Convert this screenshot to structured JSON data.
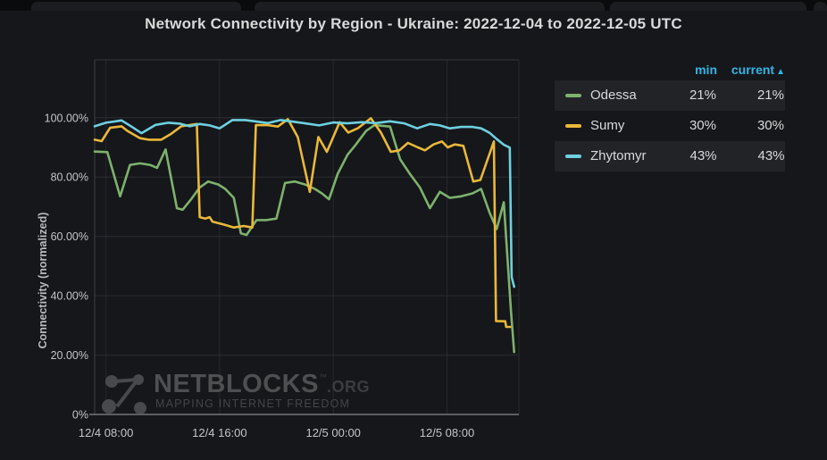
{
  "title": "Network Connectivity by Region - Ukraine: 2022-12-04 to 2022-12-05 UTC",
  "watermark": {
    "brand": "NETBLOCKS",
    "tm": "™",
    "domain": ".ORG",
    "tagline": "MAPPING INTERNET FREEDOM"
  },
  "chart_data": {
    "type": "line",
    "title": "Network Connectivity by Region - Ukraine: 2022-12-04 to 2022-12-05 UTC",
    "xlabel": "",
    "ylabel": "Connectivity (normalized)",
    "x_unit": "hours since 2022-12-04 08:00 UTC",
    "xlim": [
      -0.79,
      29.06
    ],
    "ylim": [
      0,
      119.5
    ],
    "grid": true,
    "xticks": [
      {
        "t": 0,
        "label": "12/4 08:00"
      },
      {
        "t": 8,
        "label": "12/4 16:00"
      },
      {
        "t": 16,
        "label": "12/5 00:00"
      },
      {
        "t": 24,
        "label": "12/5 08:00"
      }
    ],
    "yticks": [
      {
        "v": 0,
        "label": "0%"
      },
      {
        "v": 20,
        "label": "20.00%"
      },
      {
        "v": 40,
        "label": "40.00%"
      },
      {
        "v": 60,
        "label": "60.00%"
      },
      {
        "v": 80,
        "label": "80.00%"
      },
      {
        "v": 100,
        "label": "100.00%"
      }
    ],
    "legend": {
      "position": "right-top",
      "columns": [
        "min",
        "current"
      ],
      "sort_column": "current",
      "sort_icon": "▲",
      "header_color": "#33B5E5"
    },
    "series": [
      {
        "name": "Odessa",
        "color": "#7EB26D",
        "min": "21%",
        "current": "21%",
        "points": [
          [
            -0.79,
            88.6
          ],
          [
            0.1,
            88.4
          ],
          [
            1.0,
            73.5
          ],
          [
            1.7,
            84.1
          ],
          [
            2.4,
            84.6
          ],
          [
            3.1,
            84.1
          ],
          [
            3.6,
            83.1
          ],
          [
            4.2,
            89.3
          ],
          [
            5.0,
            69.5
          ],
          [
            5.4,
            69.0
          ],
          [
            6.0,
            72.5
          ],
          [
            6.6,
            76.5
          ],
          [
            7.2,
            78.5
          ],
          [
            7.9,
            77.5
          ],
          [
            8.4,
            76.0
          ],
          [
            9.0,
            73.0
          ],
          [
            9.5,
            61.0
          ],
          [
            9.9,
            60.5
          ],
          [
            10.6,
            65.5
          ],
          [
            11.3,
            65.5
          ],
          [
            12.0,
            66.0
          ],
          [
            12.6,
            78.0
          ],
          [
            13.3,
            78.5
          ],
          [
            14.0,
            77.5
          ],
          [
            14.7,
            76.0
          ],
          [
            15.2,
            74.5
          ],
          [
            15.7,
            72.5
          ],
          [
            16.3,
            81.0
          ],
          [
            17.0,
            87.5
          ],
          [
            17.6,
            91.0
          ],
          [
            18.3,
            95.5
          ],
          [
            18.9,
            97.5
          ],
          [
            20.0,
            97.0
          ],
          [
            20.7,
            86.0
          ],
          [
            21.4,
            81.0
          ],
          [
            22.1,
            76.5
          ],
          [
            22.8,
            69.5
          ],
          [
            23.5,
            75.0
          ],
          [
            24.2,
            73.0
          ],
          [
            25.0,
            73.5
          ],
          [
            25.8,
            74.5
          ],
          [
            26.4,
            76.0
          ],
          [
            27.0,
            68.0
          ],
          [
            27.5,
            62.5
          ],
          [
            28.0,
            71.5
          ],
          [
            28.5,
            35.0
          ],
          [
            28.73,
            21.0
          ]
        ]
      },
      {
        "name": "Sumy",
        "color": "#EAB839",
        "min": "30%",
        "current": "30%",
        "points": [
          [
            -0.79,
            92.6
          ],
          [
            -0.3,
            92.1
          ],
          [
            0.3,
            96.6
          ],
          [
            1.1,
            97.1
          ],
          [
            1.5,
            95.6
          ],
          [
            2.4,
            93.1
          ],
          [
            3.0,
            92.6
          ],
          [
            3.9,
            92.6
          ],
          [
            4.6,
            94.6
          ],
          [
            5.3,
            97.1
          ],
          [
            6.0,
            97.6
          ],
          [
            6.4,
            97.9
          ],
          [
            6.6,
            66.5
          ],
          [
            7.0,
            66.0
          ],
          [
            7.3,
            66.5
          ],
          [
            7.5,
            65.0
          ],
          [
            8.3,
            64.0
          ],
          [
            9.0,
            63.0
          ],
          [
            9.7,
            63.5
          ],
          [
            10.3,
            63.0
          ],
          [
            10.55,
            97.5
          ],
          [
            11.4,
            97.5
          ],
          [
            12.1,
            97.0
          ],
          [
            12.8,
            99.5
          ],
          [
            13.5,
            93.5
          ],
          [
            14.35,
            75.0
          ],
          [
            14.95,
            93.5
          ],
          [
            15.55,
            88.5
          ],
          [
            16.45,
            98.5
          ],
          [
            17.05,
            95.0
          ],
          [
            17.75,
            96.5
          ],
          [
            18.65,
            99.8
          ],
          [
            19.35,
            95.0
          ],
          [
            20.05,
            88.5
          ],
          [
            20.65,
            89.0
          ],
          [
            21.25,
            91.5
          ],
          [
            21.95,
            90.0
          ],
          [
            22.45,
            89.0
          ],
          [
            23.05,
            91.0
          ],
          [
            23.65,
            92.0
          ],
          [
            24.05,
            90.0
          ],
          [
            24.55,
            91.0
          ],
          [
            25.15,
            90.5
          ],
          [
            25.85,
            78.5
          ],
          [
            26.35,
            79.0
          ],
          [
            27.3,
            92.0
          ],
          [
            27.45,
            31.5
          ],
          [
            28.1,
            31.4
          ],
          [
            28.17,
            29.5
          ],
          [
            28.45,
            29.5
          ]
        ]
      },
      {
        "name": "Zhytomyr",
        "color": "#6ED0E0",
        "min": "43%",
        "current": "43%",
        "points": [
          [
            -0.79,
            97.1
          ],
          [
            0.0,
            98.3
          ],
          [
            1.1,
            99.1
          ],
          [
            1.8,
            97.0
          ],
          [
            2.5,
            94.8
          ],
          [
            3.5,
            97.6
          ],
          [
            4.4,
            98.3
          ],
          [
            5.2,
            98.0
          ],
          [
            5.9,
            97.1
          ],
          [
            6.6,
            97.9
          ],
          [
            7.3,
            97.4
          ],
          [
            8.0,
            96.4
          ],
          [
            8.9,
            99.2
          ],
          [
            9.8,
            99.2
          ],
          [
            10.6,
            98.7
          ],
          [
            11.4,
            98.2
          ],
          [
            12.3,
            99.2
          ],
          [
            13.1,
            98.7
          ],
          [
            13.9,
            98.2
          ],
          [
            15.0,
            97.4
          ],
          [
            16.0,
            98.4
          ],
          [
            17.0,
            98.1
          ],
          [
            18.0,
            98.5
          ],
          [
            19.0,
            98.2
          ],
          [
            20.0,
            98.8
          ],
          [
            21.0,
            98.1
          ],
          [
            21.9,
            96.4
          ],
          [
            22.8,
            97.9
          ],
          [
            23.5,
            97.4
          ],
          [
            24.2,
            96.4
          ],
          [
            25.0,
            96.9
          ],
          [
            25.8,
            96.9
          ],
          [
            26.4,
            96.4
          ],
          [
            27.0,
            94.9
          ],
          [
            27.5,
            92.8
          ],
          [
            28.0,
            90.9
          ],
          [
            28.42,
            89.9
          ],
          [
            28.55,
            46.3
          ],
          [
            28.73,
            43.0
          ]
        ]
      }
    ]
  }
}
